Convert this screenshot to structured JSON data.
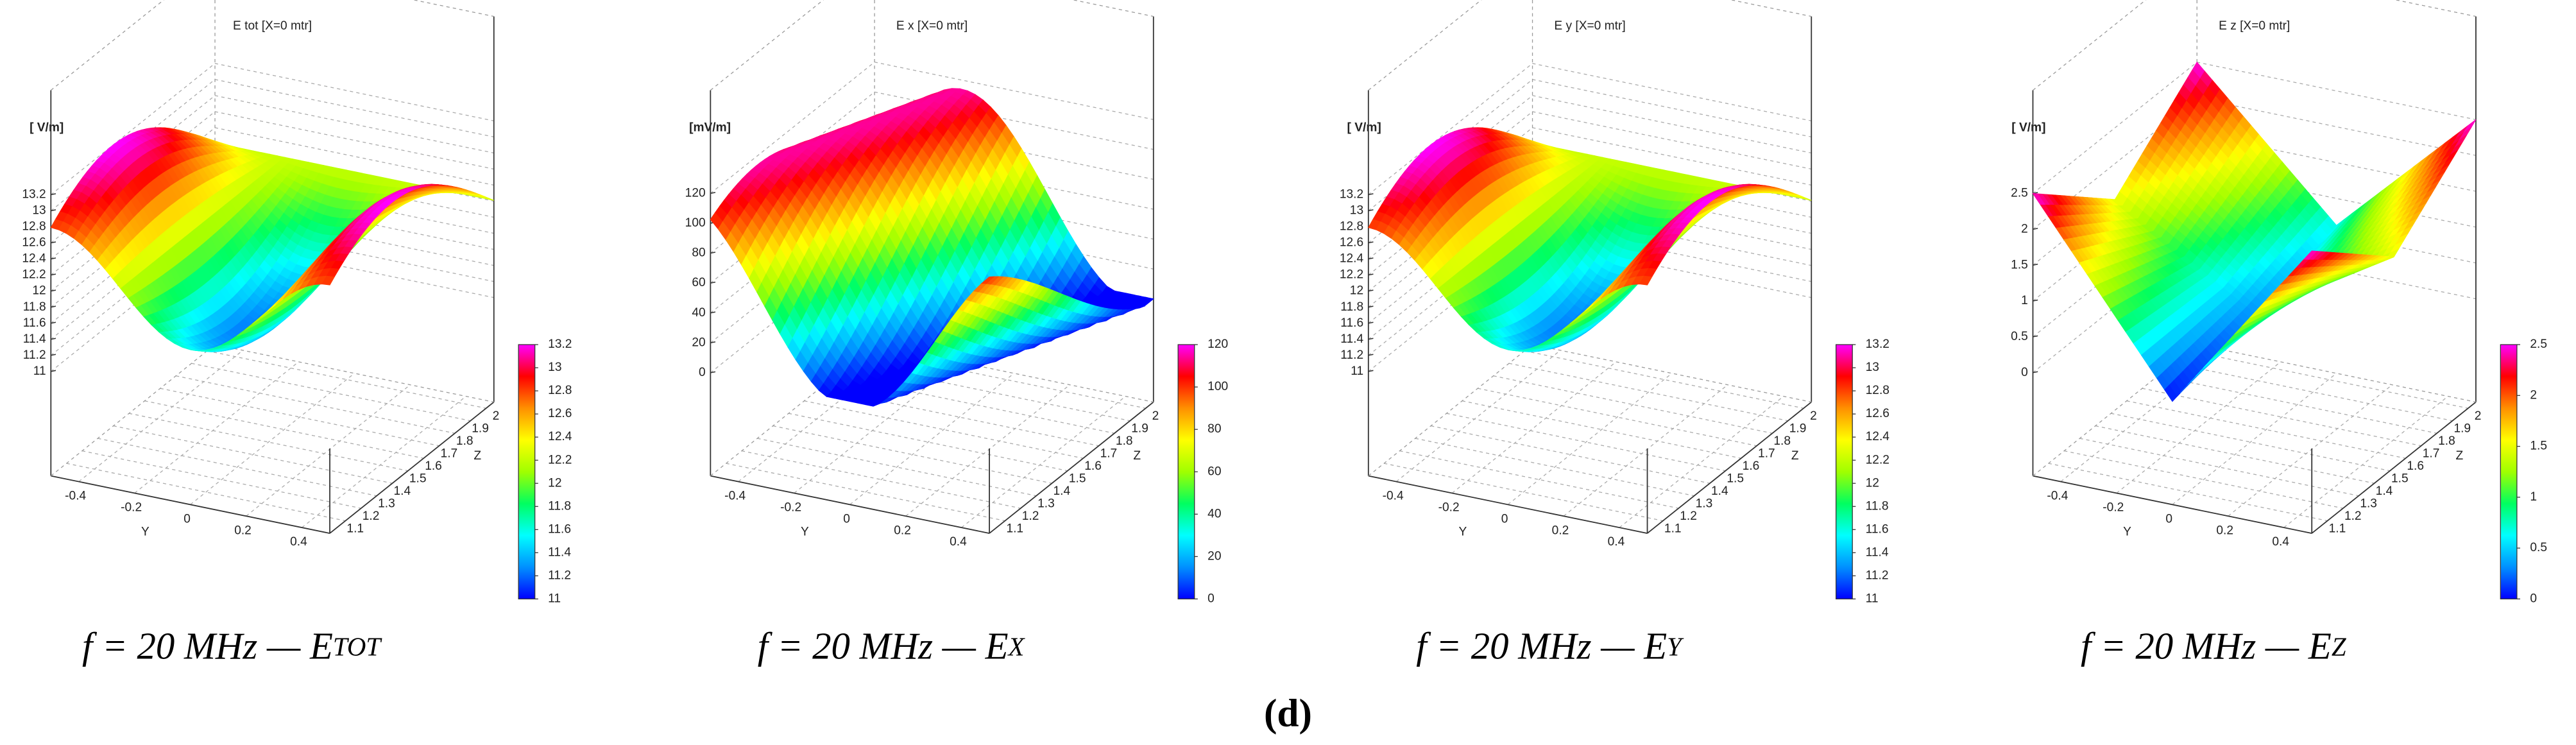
{
  "figure_label": "(d)",
  "colormap": [
    "#0000ff",
    "#0090ff",
    "#00ffff",
    "#00ff60",
    "#a0ff00",
    "#ffff00",
    "#ff9000",
    "#ff0000",
    "#ff00ff"
  ],
  "chart_data": [
    {
      "type": "surface3d",
      "title": "E tot [X=0 mtr]",
      "v_unit": "[ V/m]",
      "ylabel": "Y",
      "zlabel": "Z",
      "ylim": [
        -0.5,
        0.5
      ],
      "yticks": [
        -0.4,
        -0.2,
        0,
        0.2,
        0.4
      ],
      "zlim": [
        1.0,
        2.05
      ],
      "zticks": [
        1.1,
        1.2,
        1.3,
        1.4,
        1.5,
        1.6,
        1.7,
        1.8,
        1.9,
        2
      ],
      "vlim": [
        9.7,
        14.5
      ],
      "vticks": [
        11,
        11.2,
        11.4,
        11.6,
        11.8,
        12,
        12.2,
        12.4,
        12.6,
        12.8,
        13,
        13.2
      ],
      "clim": [
        11,
        13.2
      ],
      "cticks": [
        11,
        11.2,
        11.4,
        11.6,
        11.8,
        12,
        12.2,
        12.4,
        12.6,
        12.8,
        13,
        13.2
      ],
      "caption": "f = 20 MHz — E",
      "caption_subscript": "TOT"
    },
    {
      "type": "surface3d",
      "title": "E x [X=0 mtr]",
      "v_unit": "[mV/m]",
      "ylabel": "Y",
      "zlabel": "Z",
      "ylim": [
        -0.5,
        0.5
      ],
      "yticks": [
        -0.4,
        -0.2,
        0,
        0.2,
        0.4
      ],
      "zlim": [
        1.0,
        2.05
      ],
      "zticks": [
        1.1,
        1.2,
        1.3,
        1.4,
        1.5,
        1.6,
        1.7,
        1.8,
        1.9,
        2
      ],
      "vlim": [
        -69,
        189
      ],
      "vticks": [
        0,
        20,
        40,
        60,
        80,
        100,
        120
      ],
      "clim": [
        0,
        120
      ],
      "cticks": [
        0,
        20,
        40,
        60,
        80,
        100,
        120
      ],
      "caption": "f = 20 MHz — E",
      "caption_subscript": "X"
    },
    {
      "type": "surface3d",
      "title": "E y [X=0 mtr]",
      "v_unit": "[ V/m]",
      "ylabel": "Y",
      "zlabel": "Z",
      "ylim": [
        -0.5,
        0.5
      ],
      "yticks": [
        -0.4,
        -0.2,
        0,
        0.2,
        0.4
      ],
      "zlim": [
        1.0,
        2.05
      ],
      "zticks": [
        1.1,
        1.2,
        1.3,
        1.4,
        1.5,
        1.6,
        1.7,
        1.8,
        1.9,
        2
      ],
      "vlim": [
        9.7,
        14.5
      ],
      "vticks": [
        11,
        11.2,
        11.4,
        11.6,
        11.8,
        12,
        12.2,
        12.4,
        12.6,
        12.8,
        13,
        13.2
      ],
      "clim": [
        11,
        13.2
      ],
      "cticks": [
        11,
        11.2,
        11.4,
        11.6,
        11.8,
        12,
        12.2,
        12.4,
        12.6,
        12.8,
        13,
        13.2
      ],
      "caption": "f = 20 MHz — E",
      "caption_subscript": "Y"
    },
    {
      "type": "surface3d",
      "title": "E z [X=0 mtr]",
      "v_unit": "[ V/m]",
      "ylabel": "Y",
      "zlabel": "Z",
      "ylim": [
        -0.5,
        0.5
      ],
      "yticks": [
        -0.4,
        -0.2,
        0,
        0.2,
        0.4
      ],
      "zlim": [
        1.0,
        2.05
      ],
      "zticks": [
        1.1,
        1.2,
        1.3,
        1.4,
        1.5,
        1.6,
        1.7,
        1.8,
        1.9,
        2
      ],
      "vlim": [
        -1.44,
        3.94
      ],
      "vticks": [
        0,
        0.5,
        1,
        1.5,
        2,
        2.5
      ],
      "clim": [
        0,
        2.5
      ],
      "cticks": [
        0,
        0.5,
        1,
        1.5,
        2,
        2.5
      ],
      "caption": "f = 20 MHz — E",
      "caption_subscript": "Z"
    }
  ]
}
